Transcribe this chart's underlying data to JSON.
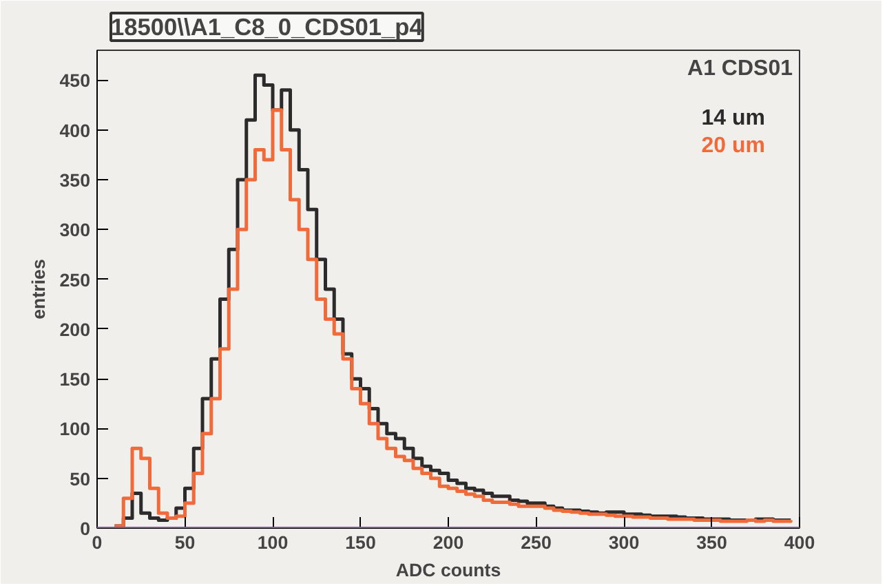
{
  "chart_data": {
    "type": "step",
    "title": "18500\\\\A1_C8_0_CDS01_p4",
    "xlabel": "ADC counts",
    "ylabel": "entries",
    "legend_title": "A1 CDS01",
    "legend": "top right",
    "xlim": [
      0,
      400
    ],
    "ylim": [
      0,
      480
    ],
    "xticks": [
      0,
      50,
      100,
      150,
      200,
      250,
      300,
      350,
      400
    ],
    "yticks": [
      0,
      50,
      100,
      150,
      200,
      250,
      300,
      350,
      400,
      450
    ],
    "grid": false,
    "ref_lines": [
      {
        "axis": "y",
        "value": 0,
        "color": "#7b5fa0"
      }
    ],
    "x": [
      10,
      15,
      20,
      25,
      30,
      35,
      40,
      45,
      50,
      55,
      60,
      65,
      70,
      75,
      80,
      85,
      90,
      95,
      100,
      105,
      110,
      115,
      120,
      125,
      130,
      135,
      140,
      145,
      150,
      155,
      160,
      165,
      170,
      175,
      180,
      185,
      190,
      195,
      200,
      205,
      210,
      215,
      220,
      225,
      230,
      235,
      240,
      245,
      250,
      255,
      260,
      265,
      270,
      275,
      280,
      285,
      290,
      295,
      300,
      305,
      310,
      315,
      320,
      325,
      330,
      335,
      340,
      345,
      350,
      355,
      360,
      365,
      370,
      375,
      380,
      385,
      390,
      395
    ],
    "series": [
      {
        "name": "14 um",
        "color": "#2b2b2b",
        "values": [
          2,
          10,
          35,
          15,
          10,
          8,
          10,
          20,
          40,
          80,
          130,
          170,
          230,
          280,
          350,
          410,
          455,
          445,
          420,
          440,
          400,
          360,
          320,
          270,
          240,
          210,
          175,
          150,
          140,
          120,
          105,
          95,
          90,
          80,
          70,
          62,
          58,
          55,
          48,
          45,
          40,
          38,
          35,
          32,
          32,
          28,
          27,
          25,
          25,
          22,
          20,
          18,
          18,
          17,
          16,
          15,
          16,
          16,
          14,
          14,
          13,
          12,
          12,
          12,
          11,
          10,
          10,
          9,
          9,
          9,
          8,
          8,
          8,
          9,
          9,
          8,
          8,
          8
        ]
      },
      {
        "name": "20 um",
        "color": "#f06a3a",
        "values": [
          2,
          30,
          80,
          70,
          40,
          15,
          10,
          12,
          25,
          55,
          95,
          130,
          180,
          240,
          300,
          350,
          380,
          370,
          420,
          380,
          330,
          300,
          270,
          230,
          210,
          195,
          170,
          140,
          125,
          105,
          90,
          80,
          72,
          68,
          60,
          55,
          50,
          42,
          40,
          37,
          34,
          32,
          28,
          26,
          26,
          24,
          22,
          22,
          22,
          20,
          18,
          17,
          16,
          15,
          14,
          14,
          13,
          12,
          12,
          11,
          11,
          10,
          10,
          9,
          9,
          9,
          8,
          8,
          8,
          7,
          7,
          7,
          8,
          7,
          8,
          7,
          7,
          8
        ]
      }
    ]
  }
}
